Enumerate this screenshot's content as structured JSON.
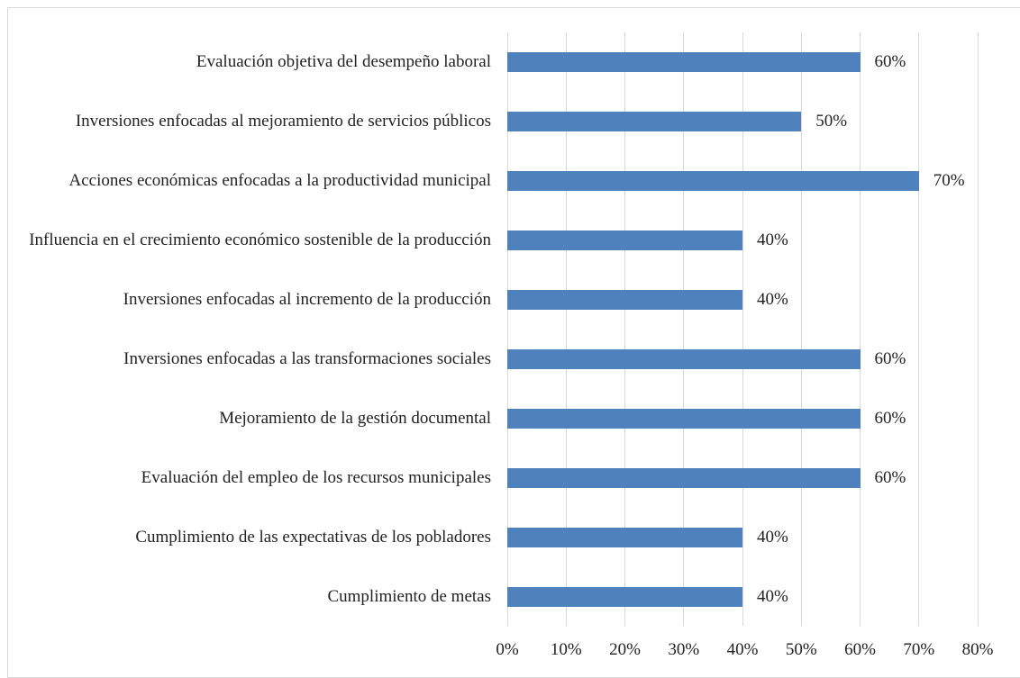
{
  "chart_data": {
    "type": "bar",
    "orientation": "horizontal",
    "categories": [
      "Evaluación objetiva del desempeño laboral ",
      "Inversiones enfocadas al mejoramiento de servicios públicos",
      "Acciones económicas enfocadas a la productividad municipal",
      "Influencia en el crecimiento económico sostenible de la producción",
      "Inversiones enfocadas al incremento de la producción",
      "Inversiones enfocadas a las transformaciones sociales ",
      "Mejoramiento de la gestión documental",
      "Evaluación del empleo de los recursos municipales",
      "Cumplimiento de las expectativas de los pobladores",
      "Cumplimiento de metas"
    ],
    "values": [
      60,
      50,
      70,
      40,
      40,
      60,
      60,
      60,
      40,
      40
    ],
    "value_labels": [
      "60%",
      "50%",
      "70%",
      "40%",
      "40%",
      "60%",
      "60%",
      "60%",
      "40%",
      "40%"
    ],
    "color": "#4f81bd",
    "xlim": [
      0,
      80
    ],
    "xticks": [
      {
        "value": 0,
        "label": "0%"
      },
      {
        "value": 10,
        "label": "10%"
      },
      {
        "value": 20,
        "label": "20%"
      },
      {
        "value": 30,
        "label": "30%"
      },
      {
        "value": 40,
        "label": "40%"
      },
      {
        "value": 50,
        "label": "50%"
      },
      {
        "value": 60,
        "label": "60%"
      },
      {
        "value": 70,
        "label": "70%"
      },
      {
        "value": 80,
        "label": "80%"
      }
    ],
    "grid": true
  }
}
